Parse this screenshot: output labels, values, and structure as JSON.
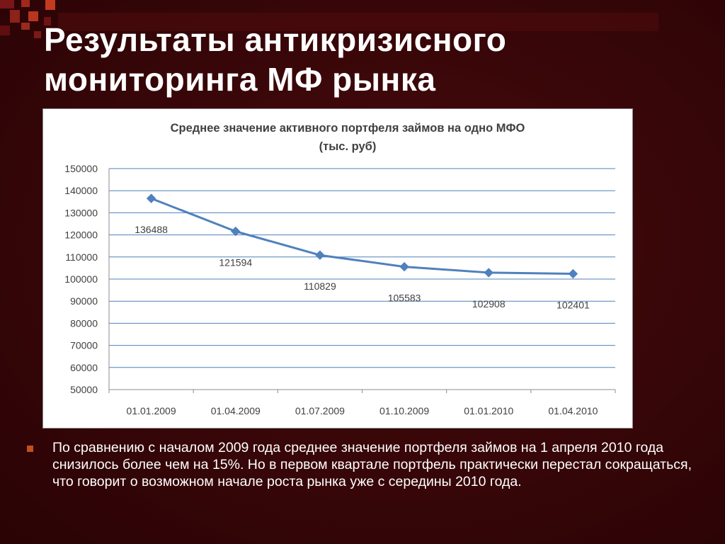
{
  "slide": {
    "title_line1": "Результаты антикризисного",
    "title_line2": "мониторинга МФ рынка",
    "bullet_text": "По сравнению с началом 2009 года среднее значение портфеля займов на 1 апреля 2010 года снизилось более чем на 15%. Но в первом квартале портфель практически перестал сокращаться, что говорит о возможном начале роста рынка уже с середины 2010 года.",
    "colors": {
      "background": "#3a0709",
      "accent": "#c0501e",
      "line": "#4f81bd"
    }
  },
  "chart_data": {
    "type": "line",
    "title_line1": "Среднее значение активного портфеля займов на одно МФО",
    "title_line2": "(тыс. руб)",
    "categories": [
      "01.01.2009",
      "01.04.2009",
      "01.07.2009",
      "01.10.2009",
      "01.01.2010",
      "01.04.2010"
    ],
    "values": [
      136488,
      121594,
      110829,
      105583,
      102908,
      102401
    ],
    "data_labels": [
      "136488",
      "121594",
      "110829",
      "105583",
      "102908",
      "102401"
    ],
    "ylim": [
      50000,
      150000
    ],
    "yticks": [
      "150000",
      "140000",
      "130000",
      "120000",
      "110000",
      "100000",
      "90000",
      "80000",
      "70000",
      "60000",
      "50000"
    ],
    "grid": true,
    "legend": "none",
    "xlabel": "",
    "ylabel": ""
  }
}
